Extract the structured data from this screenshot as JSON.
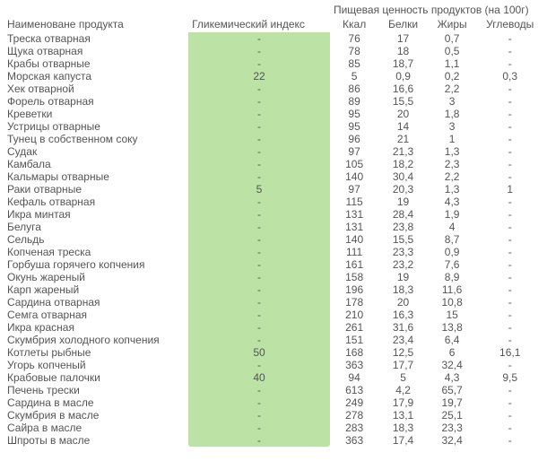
{
  "headers": {
    "name": "Наименоване продукта",
    "gi": "Гликемический индекс",
    "nutrition_group": "Пищевая ценность продуктов (на 100г)",
    "kcal": "Ккал",
    "protein": "Белки",
    "fat": "Жиры",
    "carb": "Углеводы"
  },
  "rows": [
    {
      "name": "Треска отварная",
      "gi": "-",
      "kcal": "76",
      "protein": "17",
      "fat": "0,7",
      "carb": "-"
    },
    {
      "name": "Щука отварная",
      "gi": "-",
      "kcal": "78",
      "protein": "18",
      "fat": "0,5",
      "carb": "-"
    },
    {
      "name": "Крабы отварные",
      "gi": "-",
      "kcal": "85",
      "protein": "18,7",
      "fat": "1,1",
      "carb": "-"
    },
    {
      "name": "Морская капуста",
      "gi": "22",
      "kcal": "5",
      "protein": "0,9",
      "fat": "0,2",
      "carb": "0,3"
    },
    {
      "name": "Хек отварной",
      "gi": "-",
      "kcal": "86",
      "protein": "16,6",
      "fat": "2,2",
      "carb": "-"
    },
    {
      "name": "Форель отварная",
      "gi": "-",
      "kcal": "89",
      "protein": "15,5",
      "fat": "3",
      "carb": "-"
    },
    {
      "name": "Креветки",
      "gi": "-",
      "kcal": "95",
      "protein": "20",
      "fat": "1,8",
      "carb": "-"
    },
    {
      "name": "Устрицы отварные",
      "gi": "-",
      "kcal": "95",
      "protein": "14",
      "fat": "3",
      "carb": "-"
    },
    {
      "name": "Тунец в собственном соку",
      "gi": "-",
      "kcal": "96",
      "protein": "21",
      "fat": "1",
      "carb": "-"
    },
    {
      "name": "Судак",
      "gi": "-",
      "kcal": "97",
      "protein": "21,3",
      "fat": "1,3",
      "carb": "-"
    },
    {
      "name": "Камбала",
      "gi": "-",
      "kcal": "105",
      "protein": "18,2",
      "fat": "2,3",
      "carb": "-"
    },
    {
      "name": "Кальмары отварные",
      "gi": "-",
      "kcal": "140",
      "protein": "30,4",
      "fat": "2,2",
      "carb": "-"
    },
    {
      "name": "Раки отварные",
      "gi": "5",
      "kcal": "97",
      "protein": "20,3",
      "fat": "1,3",
      "carb": "1"
    },
    {
      "name": "Кефаль отварная",
      "gi": "-",
      "kcal": "115",
      "protein": "19",
      "fat": "4,3",
      "carb": "-"
    },
    {
      "name": "Икра минтая",
      "gi": "-",
      "kcal": "131",
      "protein": "28,4",
      "fat": "1,9",
      "carb": "-"
    },
    {
      "name": "Белуга",
      "gi": "-",
      "kcal": "131",
      "protein": "23,8",
      "fat": "4",
      "carb": "-"
    },
    {
      "name": "Сельдь",
      "gi": "-",
      "kcal": "140",
      "protein": "15,5",
      "fat": "8,7",
      "carb": "-"
    },
    {
      "name": "Копченая треска",
      "gi": "-",
      "kcal": "111",
      "protein": "23,3",
      "fat": "0,9",
      "carb": "-"
    },
    {
      "name": "Горбуша горячего копчения",
      "gi": "-",
      "kcal": "161",
      "protein": "23,2",
      "fat": "7,6",
      "carb": "-"
    },
    {
      "name": "Окунь жареный",
      "gi": "-",
      "kcal": "158",
      "protein": "19",
      "fat": "8,9",
      "carb": "-"
    },
    {
      "name": "Карп жареный",
      "gi": "-",
      "kcal": "196",
      "protein": "18,3",
      "fat": "11,6",
      "carb": "-"
    },
    {
      "name": "Сардина отварная",
      "gi": "-",
      "kcal": "178",
      "protein": "20",
      "fat": "10,8",
      "carb": "-"
    },
    {
      "name": "Семга отварная",
      "gi": "-",
      "kcal": "210",
      "protein": "16,3",
      "fat": "15",
      "carb": "-"
    },
    {
      "name": "Икра красная",
      "gi": "-",
      "kcal": "261",
      "protein": "31,6",
      "fat": "13,8",
      "carb": "-"
    },
    {
      "name": "Скумбрия холодного копчения",
      "gi": "-",
      "kcal": "151",
      "protein": "23,4",
      "fat": "6,4",
      "carb": "-"
    },
    {
      "name": "Котлеты рыбные",
      "gi": "50",
      "kcal": "168",
      "protein": "12,5",
      "fat": "6",
      "carb": "16,1"
    },
    {
      "name": "Угорь копченый",
      "gi": "-",
      "kcal": "363",
      "protein": "17,7",
      "fat": "32,4",
      "carb": "-"
    },
    {
      "name": "Крабовые палочки",
      "gi": "40",
      "kcal": "94",
      "protein": "5",
      "fat": "4,3",
      "carb": "9,5"
    },
    {
      "name": "Печень трески",
      "gi": "-",
      "kcal": "613",
      "protein": "4,2",
      "fat": "65,7",
      "carb": "-"
    },
    {
      "name": "Сардина в масле",
      "gi": "-",
      "kcal": "249",
      "protein": "17,9",
      "fat": "19,7",
      "carb": "-"
    },
    {
      "name": "Скумбрия в масле",
      "gi": "-",
      "kcal": "278",
      "protein": "13,1",
      "fat": "25,1",
      "carb": "-"
    },
    {
      "name": "Сайра в масле",
      "gi": "-",
      "kcal": "283",
      "protein": "18,3",
      "fat": "23,3",
      "carb": "-"
    },
    {
      "name": "Шпроты в масле",
      "gi": "-",
      "kcal": "363",
      "protein": "17,4",
      "fat": "32,4",
      "carb": "-"
    }
  ]
}
